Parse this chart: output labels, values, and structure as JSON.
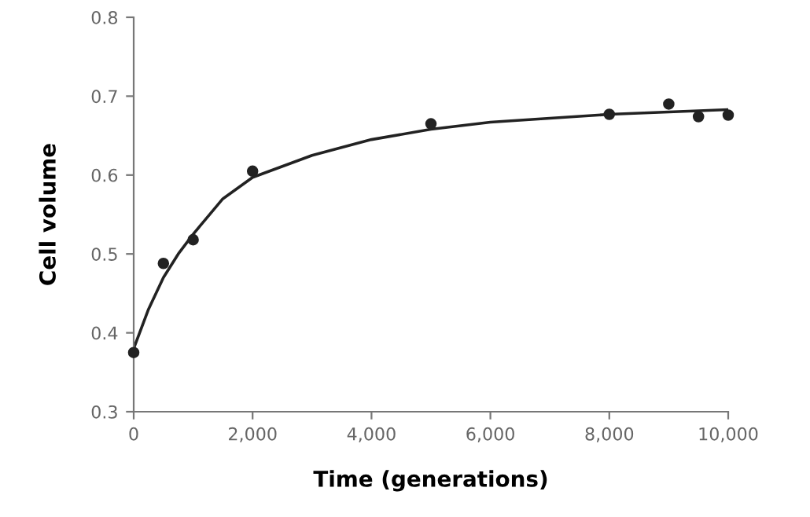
{
  "chart_data": {
    "type": "scatter",
    "xlabel": "Time (generations)",
    "ylabel": "Cell volume",
    "xlim": [
      0,
      10000
    ],
    "ylim": [
      0.3,
      0.8
    ],
    "xticks": [
      0,
      {
        "value": 2000,
        "label": "2,000"
      },
      {
        "value": 4000,
        "label": "4,000"
      },
      {
        "value": 6000,
        "label": "6,000"
      },
      {
        "value": 8000,
        "label": "8,000"
      },
      {
        "value": 10000,
        "label": "10,000"
      }
    ],
    "yticks": [
      0.3,
      0.4,
      0.5,
      0.6,
      0.7,
      0.8
    ],
    "grid": false,
    "legend": false,
    "series": [
      {
        "color": "#222222",
        "marker": "circle",
        "x": [
          0,
          500,
          1000,
          2000,
          5000,
          8000,
          9000,
          9500,
          10000
        ],
        "values": [
          0.375,
          0.488,
          0.518,
          0.605,
          0.665,
          0.677,
          0.69,
          0.674,
          0.676
        ]
      },
      {
        "type": "line",
        "color": "#222222",
        "line_style": "solid",
        "x": [
          0,
          250,
          500,
          750,
          1000,
          1500,
          2000,
          3000,
          4000,
          5000,
          6000,
          7000,
          8000,
          9000,
          10000
        ],
        "values": [
          0.38,
          0.43,
          0.47,
          0.5,
          0.525,
          0.57,
          0.597,
          0.625,
          0.645,
          0.658,
          0.667,
          0.672,
          0.677,
          0.68,
          0.683
        ]
      }
    ]
  }
}
